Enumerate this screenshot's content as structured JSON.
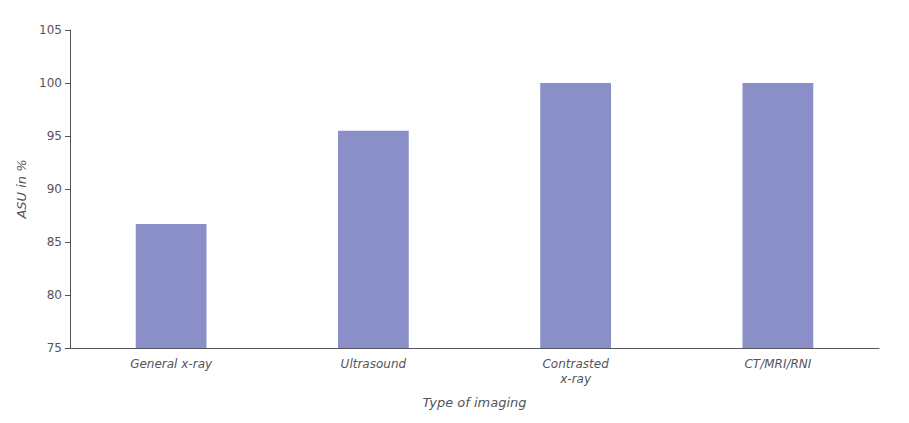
{
  "chart_data": {
    "type": "bar",
    "categories": [
      "General x-ray",
      "Ultrasound",
      "Contrasted\nx-ray",
      "CT/MRI/RNI"
    ],
    "values": [
      86.7,
      95.5,
      100.0,
      100.0
    ],
    "color": "#8b8fc8",
    "xlabel": "Type of imaging",
    "ylabel": "ASU in %",
    "ylim": [
      75,
      105
    ],
    "yticks": [
      75,
      80,
      85,
      90,
      95,
      100,
      105
    ],
    "grid": false
  }
}
